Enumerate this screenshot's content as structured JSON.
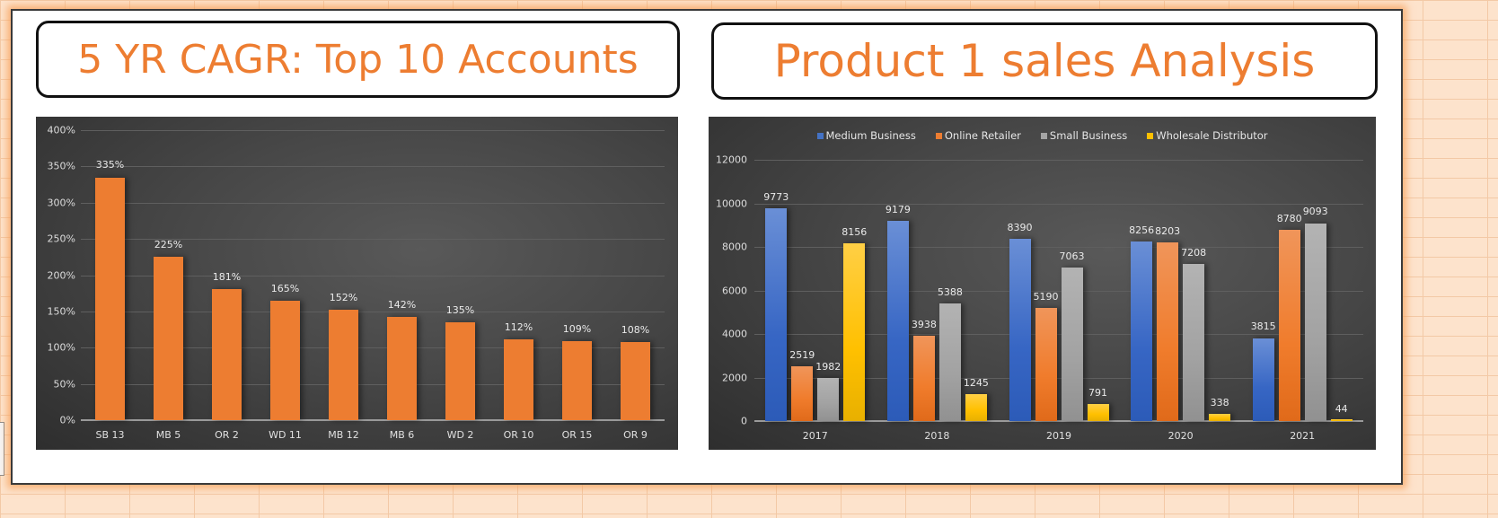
{
  "dashboard": {
    "left_title": "5 YR CAGR: Top 10 Accounts",
    "right_title": "Product 1 sales Analysis"
  },
  "colors": {
    "accent_orange": "#ED7D31",
    "medium_business": "#4472C4",
    "online_retailer": "#ED7D31",
    "small_business": "#A5A5A5",
    "wholesale_distributor": "#FFC000",
    "chart_background": "#404040"
  },
  "chart_data": [
    {
      "type": "bar",
      "title": "5 YR CAGR: Top 10 Accounts",
      "xlabel": "",
      "ylabel": "",
      "categories": [
        "SB 13",
        "MB 5",
        "OR 2",
        "WD 11",
        "MB 12",
        "MB 6",
        "WD 2",
        "OR 10",
        "OR 15",
        "OR 9"
      ],
      "values": [
        335,
        225,
        181,
        165,
        152,
        142,
        135,
        112,
        109,
        108
      ],
      "value_labels": [
        "335%",
        "225%",
        "181%",
        "165%",
        "152%",
        "142%",
        "135%",
        "112%",
        "109%",
        "108%"
      ],
      "ylim": [
        0,
        400
      ],
      "yticks": [
        "0%",
        "50%",
        "100%",
        "150%",
        "200%",
        "250%",
        "300%",
        "350%",
        "400%"
      ],
      "grid": true,
      "legend": null,
      "series_color": "#ED7D31"
    },
    {
      "type": "bar",
      "title": "Product 1 sales Analysis",
      "xlabel": "",
      "ylabel": "",
      "categories": [
        "2017",
        "2018",
        "2019",
        "2020",
        "2021"
      ],
      "series": [
        {
          "name": "Medium Business",
          "color": "#4472C4",
          "values": [
            9773,
            9179,
            8390,
            8256,
            3815
          ]
        },
        {
          "name": "Online Retailer",
          "color": "#ED7D31",
          "values": [
            2519,
            3938,
            5190,
            8203,
            8780
          ]
        },
        {
          "name": "Small Business",
          "color": "#A5A5A5",
          "values": [
            1982,
            5388,
            7063,
            7208,
            9093
          ]
        },
        {
          "name": "Wholesale Distributor",
          "color": "#FFC000",
          "values": [
            8156,
            1245,
            791,
            338,
            44
          ]
        }
      ],
      "ylim": [
        0,
        12000
      ],
      "yticks": [
        "0",
        "2000",
        "4000",
        "6000",
        "8000",
        "10000",
        "12000"
      ],
      "grid": true,
      "legend_position": "top"
    }
  ]
}
